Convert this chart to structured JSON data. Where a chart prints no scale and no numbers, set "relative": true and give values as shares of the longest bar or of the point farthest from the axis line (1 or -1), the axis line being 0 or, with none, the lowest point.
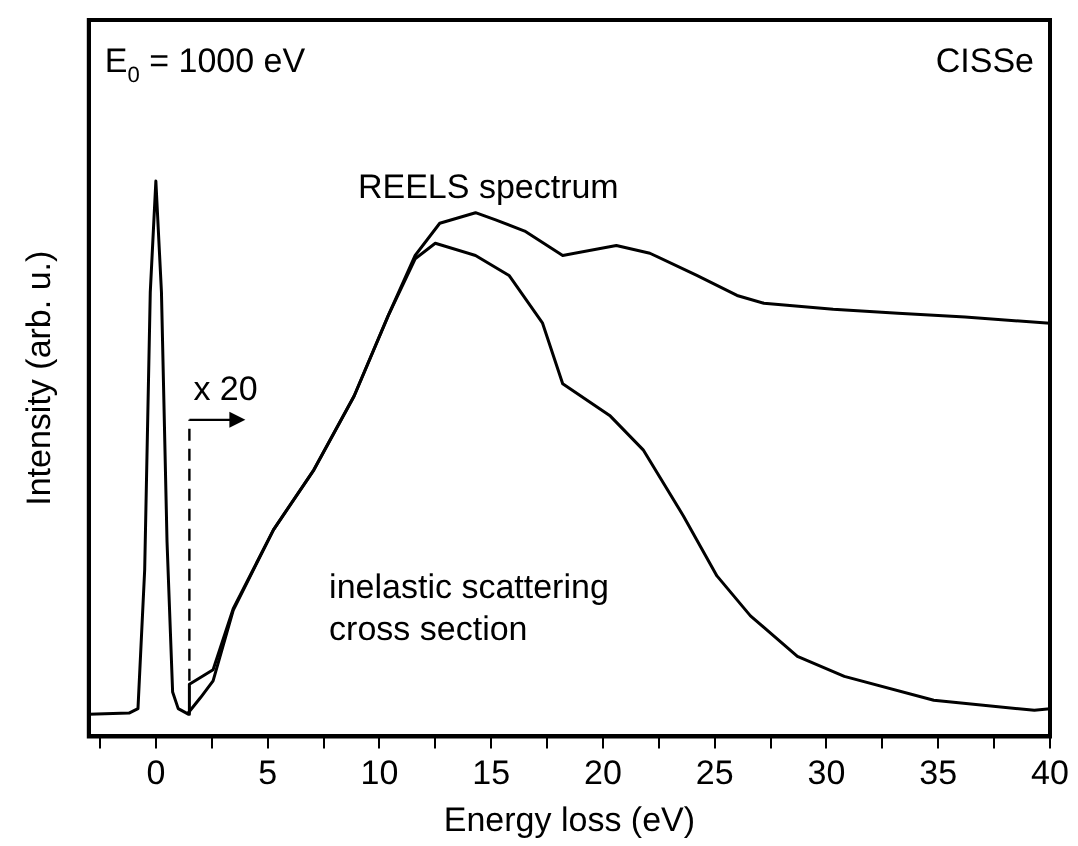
{
  "chart_data": {
    "type": "line",
    "relative": true,
    "xlabel": "Energy loss (eV)",
    "ylabel": "Intensity (arb. u.)",
    "xlim": [
      -3,
      40
    ],
    "xticks": [
      {
        "value": -2.5,
        "label": null
      },
      0,
      {
        "value": 2.5,
        "label": null
      },
      5,
      {
        "value": 7.5,
        "label": null
      },
      10,
      {
        "value": 12.5,
        "label": null
      },
      15,
      {
        "value": 17.5,
        "label": null
      },
      20,
      {
        "value": 22.5,
        "label": null
      },
      25,
      {
        "value": 27.5,
        "label": null
      },
      30,
      {
        "value": 32.5,
        "label": null
      },
      35,
      {
        "value": 37.5,
        "label": null
      },
      40
    ],
    "grid": false,
    "legend": false,
    "marker": "none",
    "line_style": "solid",
    "annotations": [
      "E$_{0}$ = 1000 eV",
      "CISSe"
    ],
    "ref_lines": [
      {
        "axis": "x",
        "value": 1.5,
        "label": "x 20",
        "line_style": "dashed"
      }
    ],
    "series": [
      {
        "name": "REELS spectrum",
        "color": "#000000",
        "x": [
          -3,
          -1.2,
          -0.8,
          -0.5,
          -0.25,
          0,
          0.25,
          0.5,
          0.75,
          1.0,
          1.45,
          1.5,
          2.56,
          3.46,
          5.26,
          7.07,
          8.87,
          10.4,
          11.6,
          12.7,
          14.3,
          15.2,
          16.5,
          18.2,
          20.6,
          22.1,
          24.2,
          26.0,
          27.2,
          30.3,
          33.2,
          36.2,
          40
        ],
        "values": [
          0.04,
          0.042,
          0.05,
          0.3,
          0.8,
          1.0,
          0.8,
          0.35,
          0.08,
          0.05,
          0.04,
          0.094,
          0.12,
          0.23,
          0.372,
          0.48,
          0.613,
          0.758,
          0.866,
          0.924,
          0.943,
          0.93,
          0.91,
          0.866,
          0.884,
          0.87,
          0.83,
          0.794,
          0.78,
          0.769,
          0.762,
          0.755,
          0.744
        ]
      },
      {
        "name": "inelastic scattering\ncross section",
        "color": "#000000",
        "x": [
          1.4,
          2.0,
          2.56,
          3.46,
          5.26,
          7.07,
          8.87,
          10.4,
          11.6,
          12.5,
          14.3,
          15.8,
          17.3,
          18.2,
          20.3,
          21.8,
          23.6,
          25.1,
          26.6,
          28.7,
          30.8,
          34.8,
          39.3,
          40
        ],
        "values": [
          0.04,
          0.07,
          0.1,
          0.227,
          0.372,
          0.48,
          0.613,
          0.758,
          0.86,
          0.888,
          0.866,
          0.83,
          0.744,
          0.635,
          0.578,
          0.516,
          0.397,
          0.289,
          0.217,
          0.144,
          0.108,
          0.065,
          0.047,
          0.05
        ]
      }
    ]
  }
}
